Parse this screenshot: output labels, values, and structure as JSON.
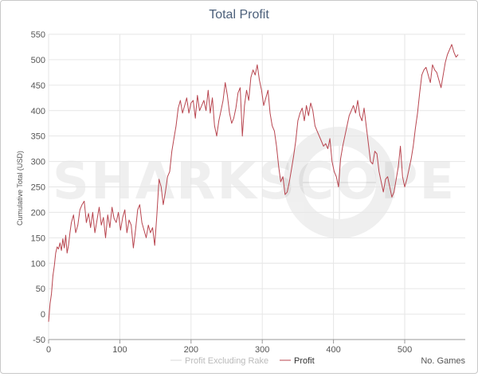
{
  "chart_data": {
    "type": "line",
    "title": "Total Profit",
    "xlabel": "No. Games",
    "ylabel": "Cumulative Total (USD)",
    "xlim": [
      0,
      585
    ],
    "ylim": [
      -50,
      550
    ],
    "x_ticks": [
      0,
      100,
      200,
      300,
      400,
      500
    ],
    "y_ticks": [
      -50,
      0,
      50,
      100,
      150,
      200,
      250,
      300,
      350,
      400,
      450,
      500,
      550
    ],
    "grid": true,
    "legend_position": "bottom-center",
    "watermark": "SHARKSCOPE",
    "series": [
      {
        "name": "Profit Excluding Rake",
        "color": "#d8d8d8",
        "x": [],
        "y": []
      },
      {
        "name": "Profit",
        "color": "#b8454f",
        "x": [
          0,
          2,
          4,
          6,
          8,
          10,
          12,
          14,
          16,
          18,
          20,
          22,
          24,
          26,
          28,
          30,
          32,
          35,
          38,
          41,
          44,
          47,
          50,
          53,
          56,
          59,
          62,
          65,
          68,
          71,
          74,
          77,
          80,
          83,
          86,
          89,
          92,
          95,
          98,
          101,
          104,
          107,
          110,
          113,
          116,
          119,
          122,
          125,
          128,
          131,
          134,
          137,
          140,
          143,
          146,
          149,
          152,
          155,
          158,
          161,
          164,
          167,
          170,
          173,
          176,
          179,
          182,
          185,
          188,
          191,
          194,
          197,
          200,
          203,
          206,
          209,
          212,
          215,
          218,
          221,
          224,
          227,
          230,
          233,
          236,
          239,
          242,
          245,
          248,
          251,
          254,
          257,
          260,
          263,
          266,
          269,
          272,
          275,
          278,
          281,
          284,
          287,
          290,
          293,
          296,
          299,
          302,
          305,
          308,
          311,
          314,
          317,
          320,
          323,
          326,
          329,
          332,
          335,
          338,
          341,
          344,
          347,
          350,
          353,
          356,
          359,
          362,
          365,
          368,
          371,
          374,
          377,
          380,
          383,
          386,
          389,
          392,
          395,
          398,
          401,
          404,
          407,
          410,
          413,
          416,
          419,
          422,
          425,
          428,
          431,
          434,
          437,
          440,
          443,
          446,
          449,
          452,
          455,
          458,
          461,
          464,
          467,
          470,
          473,
          476,
          479,
          482,
          485,
          488,
          491,
          494,
          497,
          500,
          503,
          506,
          509,
          512,
          515,
          518,
          521,
          524,
          527,
          530,
          533,
          536,
          539,
          542,
          545,
          548,
          551,
          554,
          557,
          560,
          563,
          566,
          569,
          572,
          575
        ],
        "y": [
          -15,
          20,
          40,
          75,
          95,
          120,
          132,
          128,
          140,
          125,
          148,
          130,
          155,
          120,
          135,
          160,
          180,
          195,
          160,
          175,
          205,
          215,
          222,
          180,
          198,
          170,
          200,
          160,
          185,
          210,
          175,
          190,
          150,
          195,
          170,
          210,
          188,
          180,
          200,
          165,
          190,
          205,
          160,
          185,
          175,
          130,
          165,
          205,
          215,
          180,
          165,
          150,
          175,
          160,
          170,
          135,
          195,
          265,
          250,
          215,
          240,
          270,
          280,
          320,
          345,
          370,
          405,
          420,
          395,
          410,
          425,
          395,
          415,
          420,
          385,
          430,
          400,
          410,
          420,
          400,
          440,
          395,
          425,
          370,
          350,
          380,
          400,
          420,
          455,
          430,
          395,
          375,
          385,
          405,
          435,
          445,
          350,
          410,
          440,
          420,
          465,
          480,
          470,
          490,
          460,
          440,
          410,
          425,
          440,
          395,
          370,
          360,
          330,
          290,
          260,
          270,
          235,
          240,
          260,
          285,
          310,
          340,
          380,
          395,
          405,
          380,
          410,
          390,
          415,
          400,
          370,
          360,
          350,
          340,
          330,
          335,
          325,
          345,
          300,
          280,
          270,
          250,
          305,
          330,
          350,
          370,
          390,
          400,
          410,
          395,
          420,
          390,
          380,
          405,
          370,
          335,
          300,
          295,
          320,
          315,
          280,
          260,
          240,
          265,
          270,
          250,
          230,
          240,
          265,
          290,
          330,
          270,
          250,
          265,
          285,
          305,
          330,
          365,
          395,
          435,
          470,
          480,
          485,
          470,
          455,
          490,
          480,
          475,
          460,
          445,
          470,
          495,
          510,
          520,
          530,
          515,
          505,
          510
        ]
      }
    ]
  }
}
